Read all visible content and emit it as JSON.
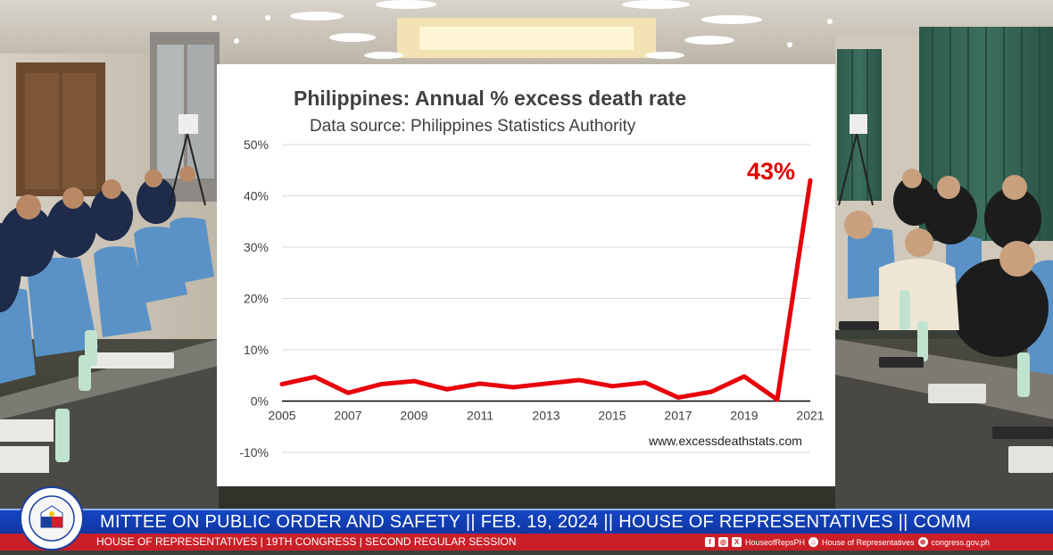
{
  "chart_data": {
    "type": "line",
    "title": "Philippines: Annual % excess death rate",
    "subtitle": "Data source: Philippines Statistics Authority",
    "source_note": "www.excessdeathstats.com",
    "annotation": "43%",
    "x": [
      2005,
      2006,
      2007,
      2008,
      2009,
      2010,
      2011,
      2012,
      2013,
      2014,
      2015,
      2016,
      2017,
      2018,
      2019,
      2020,
      2021
    ],
    "y": [
      3.3,
      4.7,
      1.6,
      3.3,
      3.9,
      2.3,
      3.4,
      2.7,
      3.4,
      4.1,
      2.9,
      3.6,
      0.7,
      1.8,
      4.8,
      0.3,
      43
    ],
    "x_ticks": [
      "2005",
      "2007",
      "2009",
      "2011",
      "2013",
      "2015",
      "2017",
      "2019",
      "2021"
    ],
    "y_ticks": [
      "50%",
      "40%",
      "30%",
      "20%",
      "10%",
      "0%",
      "-10%"
    ],
    "ylim": [
      -10,
      50
    ],
    "xlim": [
      2005,
      2021
    ],
    "grid": true,
    "line_color": "#e8000b"
  },
  "ticker": {
    "headline": "MITTEE ON PUBLIC ORDER AND SAFETY  ||  FEB. 19, 2024  ||  HOUSE OF REPRESENTATIVES ||  COMM",
    "session_line": "HOUSE OF REPRESENTATIVES | 19TH CONGRESS | SECOND REGULAR SESSION",
    "social_handle": "HouseofRepsPH",
    "social_page": "House of Representatives",
    "website": "congress.gov.ph"
  },
  "seal": {
    "arc_text": "HOUSE OF REPRESENTATIVES",
    "country": "PHILIPPINES",
    "year": "1907"
  },
  "colors": {
    "ticker_blue": "#1546c4",
    "ticker_red": "#ca1f28",
    "chart_line": "#e8000b"
  }
}
